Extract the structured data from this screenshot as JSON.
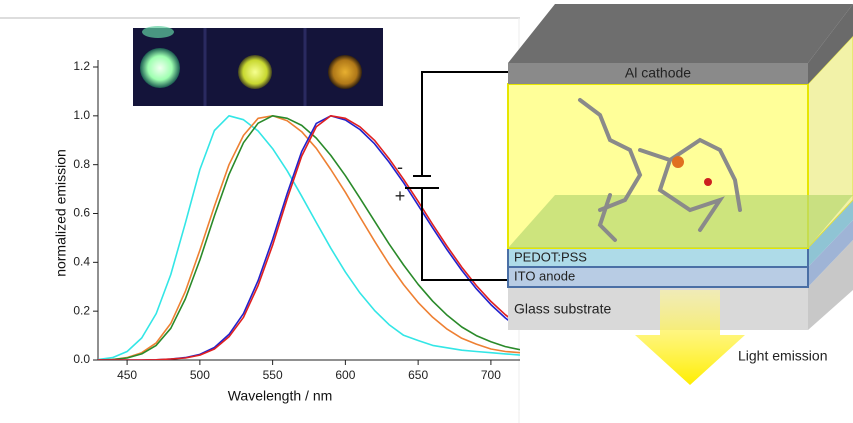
{
  "chart_data": {
    "type": "line",
    "x_label": "Wavelength / nm",
    "y_label": "normalized emission",
    "x": [
      430,
      440,
      450,
      460,
      470,
      480,
      490,
      500,
      510,
      520,
      530,
      540,
      550,
      560,
      570,
      580,
      590,
      600,
      610,
      620,
      630,
      640,
      650,
      660,
      670,
      680,
      690,
      700,
      710,
      720
    ],
    "series": [
      {
        "color": "#33e6e6",
        "values": [
          0.002,
          0.01,
          0.035,
          0.09,
          0.19,
          0.35,
          0.56,
          0.78,
          0.94,
          1.0,
          0.984,
          0.938,
          0.866,
          0.775,
          0.671,
          0.563,
          0.458,
          0.36,
          0.275,
          0.203,
          0.145,
          0.101,
          0.08,
          0.06,
          0.05,
          0.04,
          0.035,
          0.03,
          0.025,
          0.02
        ]
      },
      {
        "color": "#ee8033",
        "values": [
          0,
          0.002,
          0.01,
          0.03,
          0.07,
          0.15,
          0.28,
          0.45,
          0.63,
          0.8,
          0.92,
          0.99,
          1.0,
          0.98,
          0.935,
          0.867,
          0.78,
          0.687,
          0.586,
          0.487,
          0.393,
          0.309,
          0.236,
          0.175,
          0.126,
          0.089,
          0.065,
          0.045,
          0.035,
          0.03
        ]
      },
      {
        "color": "#2a8a2a",
        "values": [
          0,
          0.002,
          0.008,
          0.025,
          0.06,
          0.13,
          0.25,
          0.41,
          0.59,
          0.76,
          0.89,
          0.97,
          1.0,
          0.99,
          0.961,
          0.909,
          0.838,
          0.755,
          0.663,
          0.569,
          0.476,
          0.389,
          0.31,
          0.241,
          0.183,
          0.135,
          0.1,
          0.075,
          0.055,
          0.042
        ]
      },
      {
        "color": "#2222cc",
        "values": [
          0,
          0,
          0,
          0,
          0.001,
          0.004,
          0.01,
          0.023,
          0.051,
          0.105,
          0.19,
          0.325,
          0.494,
          0.682,
          0.854,
          0.969,
          1.0,
          0.983,
          0.944,
          0.886,
          0.811,
          0.726,
          0.634,
          0.541,
          0.451,
          0.367,
          0.292,
          0.227,
          0.172,
          0.127
        ]
      },
      {
        "color": "#e02020",
        "values": [
          0,
          0,
          0,
          0,
          0.001,
          0.004,
          0.008,
          0.02,
          0.045,
          0.095,
          0.175,
          0.305,
          0.47,
          0.66,
          0.835,
          0.955,
          1.0,
          0.99,
          0.955,
          0.9,
          0.825,
          0.74,
          0.65,
          0.555,
          0.465,
          0.38,
          0.305,
          0.24,
          0.185,
          0.14
        ]
      }
    ],
    "xlim": [
      430,
      720
    ],
    "ylim": [
      0,
      1.2
    ],
    "xticks": [
      450,
      500,
      550,
      600,
      650,
      700
    ],
    "yticks": [
      {
        "value": 0,
        "label": "0.0"
      },
      0.2,
      0.4,
      0.6,
      0.8,
      {
        "value": 1,
        "label": "1.0"
      },
      1.2
    ]
  },
  "diagram": {
    "layers": [
      "Al cathode",
      "PEDOT:PSS",
      "ITO anode",
      "Glass substrate"
    ],
    "output": "Light emission",
    "terminals": [
      "-",
      "+"
    ]
  }
}
